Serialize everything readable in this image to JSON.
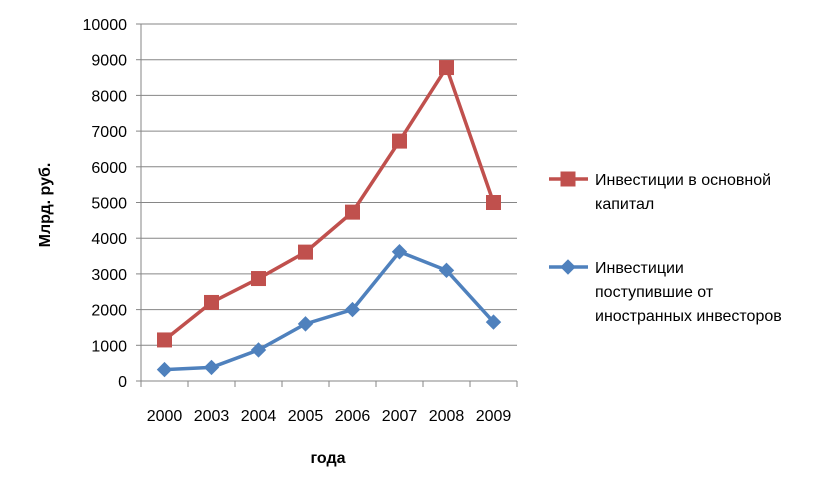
{
  "chart_data": {
    "type": "line",
    "categories": [
      "2000",
      "2003",
      "2004",
      "2005",
      "2006",
      "2007",
      "2008",
      "2009"
    ],
    "series": [
      {
        "name": "Инвестиции в основной капитал",
        "legend_lines": [
          "Инвестиции в основной",
          "капитал"
        ],
        "color": "#C0504D",
        "marker": "square",
        "values": [
          1150,
          2200,
          2870,
          3610,
          4730,
          6720,
          8780,
          5000
        ]
      },
      {
        "name": "Инвестиции поступившие от иностранных инвесторов",
        "legend_lines": [
          "Инвестиции",
          "поступившие от",
          "иностранных инвесторов"
        ],
        "color": "#4F81BD",
        "marker": "diamond",
        "values": [
          320,
          380,
          870,
          1600,
          2000,
          3620,
          3100,
          1650
        ]
      }
    ],
    "xlabel": "года",
    "ylabel": "Млрд. руб.",
    "ylim": [
      0,
      10000
    ],
    "yticks": [
      "0",
      "1000",
      "2000",
      "3000",
      "4000",
      "5000",
      "6000",
      "7000",
      "8000",
      "9000",
      "10000"
    ],
    "grid": true,
    "legend": "right"
  }
}
